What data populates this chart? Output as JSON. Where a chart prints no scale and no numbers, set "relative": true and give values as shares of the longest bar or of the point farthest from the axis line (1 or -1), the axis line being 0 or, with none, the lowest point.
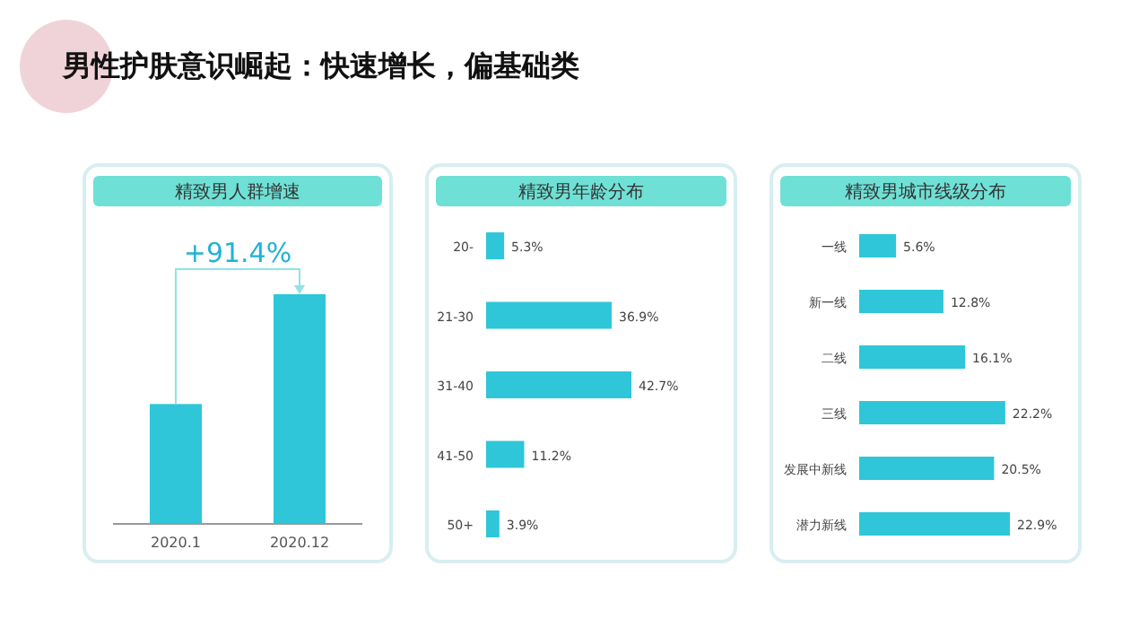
{
  "chart_data": [
    {
      "type": "bar",
      "title": "男性护肤意识崛起：快速增长，偏基础类",
      "subtitle": "精致男人群增速",
      "categories": [
        "2020.1",
        "2020.12"
      ],
      "values": [
        0.522,
        1
      ],
      "relative": true,
      "color": "#2ec6d8",
      "annotations": [
        "+91.4%"
      ]
    },
    {
      "type": "bar",
      "orientation": "horizontal",
      "title": "精致男年龄分布",
      "categories": [
        "20-",
        "21-30",
        "31-40",
        "41-50",
        "50+"
      ],
      "values": [
        5.3,
        36.9,
        42.7,
        11.2,
        3.9
      ],
      "value_labels": [
        "5.3%",
        "36.9%",
        "42.7%",
        "11.2%",
        "3.9%"
      ],
      "color": "#2ec6d8"
    },
    {
      "type": "bar",
      "orientation": "horizontal",
      "title": "精致男城市线级分布",
      "categories": [
        "一线",
        "新一线",
        "二线",
        "三线",
        "发展中新线",
        "潜力新线"
      ],
      "values": [
        5.6,
        12.8,
        16.1,
        22.2,
        20.5,
        22.9
      ],
      "value_labels": [
        "5.6%",
        "12.8%",
        "16.1%",
        "22.2%",
        "20.5%",
        "22.9%"
      ],
      "color": "#2ec6d8"
    }
  ]
}
